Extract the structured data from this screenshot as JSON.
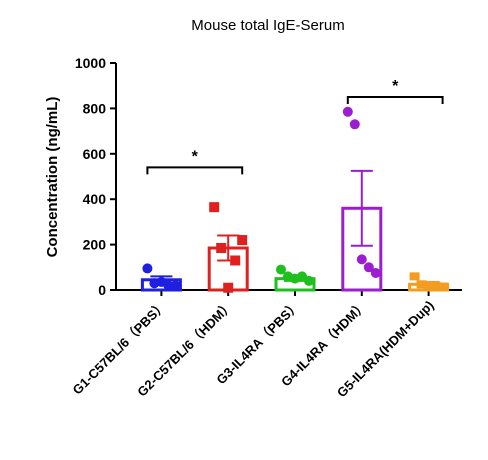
{
  "chart_data": {
    "type": "bar",
    "title": "Mouse total IgE-Serum",
    "xlabel": "",
    "ylabel": "Concentration (ng/mL)",
    "ylim": [
      0,
      1000
    ],
    "yticks": [
      0,
      200,
      400,
      600,
      800,
      1000
    ],
    "grid": false,
    "categories": [
      "G1-C57BL/6（PBS）",
      "G2-C57BL/6（HDM）",
      "G3-IL4RA（PBS）",
      "G4-IL4RA（HDM）",
      "G5-IL4RA(HDM+Dup)"
    ],
    "colors": [
      "#1f1fe0",
      "#e01f1f",
      "#1fbf1f",
      "#9b1fd1",
      "#f39c1f"
    ],
    "values": [
      45,
      185,
      50,
      360,
      25
    ],
    "sem": [
      15,
      55,
      10,
      165,
      10
    ],
    "points": [
      [
        95,
        30,
        35,
        20,
        20
      ],
      [
        365,
        185,
        10,
        130,
        220
      ],
      [
        90,
        60,
        50,
        60,
        40
      ],
      [
        785,
        730,
        135,
        100,
        75
      ],
      [
        60,
        25,
        20,
        18,
        15
      ]
    ],
    "significance": [
      {
        "from": 0,
        "to": 1,
        "label": "*",
        "y": 540
      },
      {
        "from": 3,
        "to": 4,
        "label": "*",
        "y": 850
      }
    ]
  }
}
